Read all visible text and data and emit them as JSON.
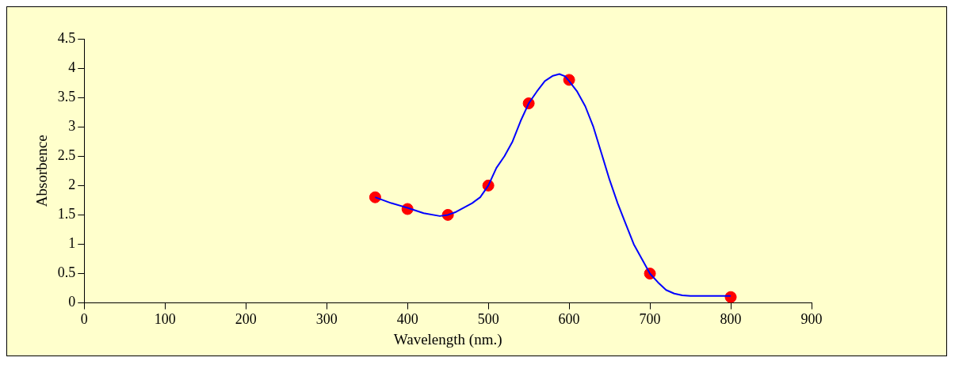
{
  "chart_data": {
    "type": "scatter",
    "xlabel": "Wavelength (nm.)",
    "ylabel": "Absorbence",
    "xlim": [
      0,
      900
    ],
    "xticks": [
      0,
      100,
      200,
      300,
      400,
      500,
      600,
      700,
      800,
      900
    ],
    "ylim": [
      0,
      4.5
    ],
    "yticks": [
      0,
      0.5,
      1,
      1.5,
      2,
      2.5,
      3,
      3.5,
      4,
      4.5
    ],
    "grid": false,
    "legend": false,
    "marker": "circle",
    "series": [
      {
        "type": "line",
        "color": "#0000ff",
        "marker": "none",
        "x": [
          360,
          380,
          400,
          420,
          440,
          450,
          460,
          480,
          490,
          500,
          510,
          520,
          530,
          540,
          550,
          560,
          570,
          580,
          588,
          595,
          600,
          610,
          620,
          630,
          640,
          650,
          660,
          670,
          680,
          690,
          700,
          710,
          720,
          730,
          740,
          750,
          800
        ],
        "values": [
          1.8,
          1.7,
          1.62,
          1.53,
          1.48,
          1.5,
          1.55,
          1.7,
          1.8,
          2.0,
          2.3,
          2.5,
          2.75,
          3.1,
          3.4,
          3.6,
          3.78,
          3.87,
          3.9,
          3.86,
          3.78,
          3.6,
          3.35,
          3.0,
          2.55,
          2.1,
          1.7,
          1.35,
          1.0,
          0.75,
          0.5,
          0.35,
          0.22,
          0.16,
          0.13,
          0.12,
          0.12
        ]
      },
      {
        "type": "scatter",
        "color": "#ff0000",
        "x": [
          360,
          400,
          450,
          500,
          550,
          600,
          700,
          800
        ],
        "values": [
          1.8,
          1.6,
          1.5,
          2.0,
          3.4,
          3.8,
          0.5,
          0.1
        ]
      }
    ]
  }
}
